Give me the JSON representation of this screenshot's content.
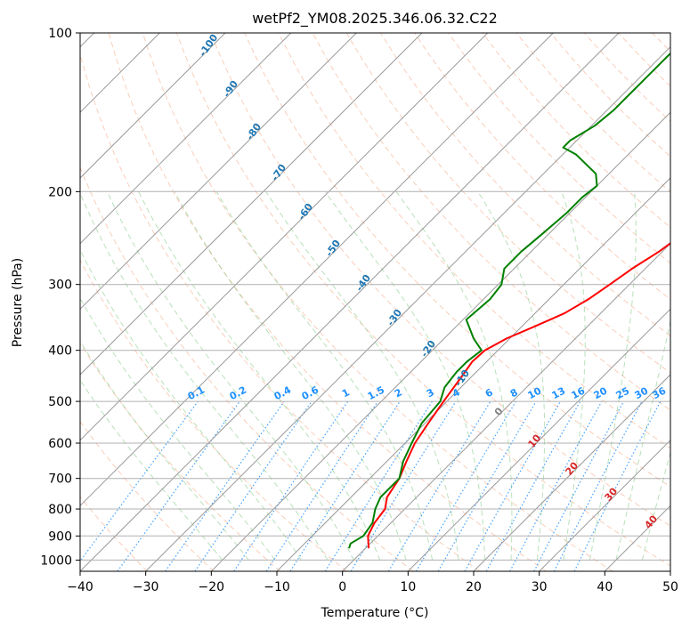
{
  "chart_data": {
    "type": "line",
    "title": "wetPf2_YM08.2025.346.06.32.C22",
    "xlabel": "Temperature (°C)",
    "ylabel": "Pressure (hPa)",
    "xlim": [
      -40,
      50
    ],
    "ylim": [
      1050,
      100
    ],
    "y_scale": "log",
    "grid": true,
    "x_ticks": [
      -40,
      -30,
      -20,
      -10,
      0,
      10,
      20,
      30,
      40,
      50
    ],
    "y_ticks": [
      100,
      200,
      300,
      400,
      500,
      600,
      700,
      800,
      900,
      1000
    ],
    "skew": "isotherms 45°",
    "reference_lines": {
      "dry_adiabats_labels": [
        "-100",
        "-90",
        "-80",
        "-70",
        "-60",
        "-50",
        "-40",
        "-30",
        "-20",
        "-10"
      ],
      "mixing_ratio_labels": [
        "0.1",
        "0.2",
        "0.4",
        "0.6",
        "1",
        "1.5",
        "2",
        "3",
        "4",
        "6",
        "8",
        "10",
        "13",
        "16",
        "20",
        "25",
        "30",
        "36"
      ],
      "moist_adiabat_labels": [
        "0",
        "10",
        "20",
        "30",
        "40"
      ]
    },
    "series": [
      {
        "color": "#ff0000",
        "points": [
          {
            "p": 950,
            "t": 0.5
          },
          {
            "p": 900,
            "t": -1.5
          },
          {
            "p": 850,
            "t": -2.5
          },
          {
            "p": 800,
            "t": -3.0
          },
          {
            "p": 760,
            "t": -4.5
          },
          {
            "p": 700,
            "t": -5.5
          },
          {
            "p": 650,
            "t": -7.0
          },
          {
            "p": 600,
            "t": -8.5
          },
          {
            "p": 550,
            "t": -9.5
          },
          {
            "p": 500,
            "t": -10.5
          },
          {
            "p": 450,
            "t": -11.5
          },
          {
            "p": 420,
            "t": -12.2
          },
          {
            "p": 400,
            "t": -12.0
          },
          {
            "p": 380,
            "t": -10.5
          },
          {
            "p": 360,
            "t": -8.0
          },
          {
            "p": 340,
            "t": -5.5
          },
          {
            "p": 320,
            "t": -4.0
          },
          {
            "p": 300,
            "t": -3.0
          },
          {
            "p": 280,
            "t": -2.0
          },
          {
            "p": 260,
            "t": -0.5
          },
          {
            "p": 240,
            "t": 0.5
          },
          {
            "p": 220,
            "t": 1.5
          },
          {
            "p": 200,
            "t": 2.0
          },
          {
            "p": 180,
            "t": 2.0
          },
          {
            "p": 160,
            "t": 2.0
          },
          {
            "p": 140,
            "t": 1.5
          },
          {
            "p": 130,
            "t": 0.5
          },
          {
            "p": 120,
            "t": -1.0
          },
          {
            "p": 110,
            "t": -2.0
          },
          {
            "p": 100,
            "t": -3.0
          }
        ]
      },
      {
        "color": "#008000",
        "points": [
          {
            "p": 950,
            "t": -2.5
          },
          {
            "p": 930,
            "t": -3.0
          },
          {
            "p": 900,
            "t": -2.2
          },
          {
            "p": 850,
            "t": -2.8
          },
          {
            "p": 800,
            "t": -4.5
          },
          {
            "p": 760,
            "t": -5.5
          },
          {
            "p": 700,
            "t": -5.5
          },
          {
            "p": 650,
            "t": -7.5
          },
          {
            "p": 600,
            "t": -9.0
          },
          {
            "p": 550,
            "t": -10.5
          },
          {
            "p": 500,
            "t": -11.0
          },
          {
            "p": 470,
            "t": -12.5
          },
          {
            "p": 440,
            "t": -13.0
          },
          {
            "p": 420,
            "t": -13.0
          },
          {
            "p": 400,
            "t": -12.5
          },
          {
            "p": 380,
            "t": -15.5
          },
          {
            "p": 350,
            "t": -19.5
          },
          {
            "p": 320,
            "t": -19.0
          },
          {
            "p": 300,
            "t": -19.5
          },
          {
            "p": 280,
            "t": -21.5
          },
          {
            "p": 260,
            "t": -21.5
          },
          {
            "p": 240,
            "t": -21.0
          },
          {
            "p": 220,
            "t": -20.5
          },
          {
            "p": 205,
            "t": -20.5
          },
          {
            "p": 195,
            "t": -20.0
          },
          {
            "p": 185,
            "t": -22.0
          },
          {
            "p": 170,
            "t": -28.0
          },
          {
            "p": 165,
            "t": -31.0
          },
          {
            "p": 160,
            "t": -31.0
          },
          {
            "p": 150,
            "t": -29.5
          },
          {
            "p": 140,
            "t": -29.0
          },
          {
            "p": 130,
            "t": -29.0
          },
          {
            "p": 120,
            "t": -29.0
          },
          {
            "p": 110,
            "t": -29.0
          },
          {
            "p": 100,
            "t": -28.5
          }
        ]
      }
    ]
  }
}
